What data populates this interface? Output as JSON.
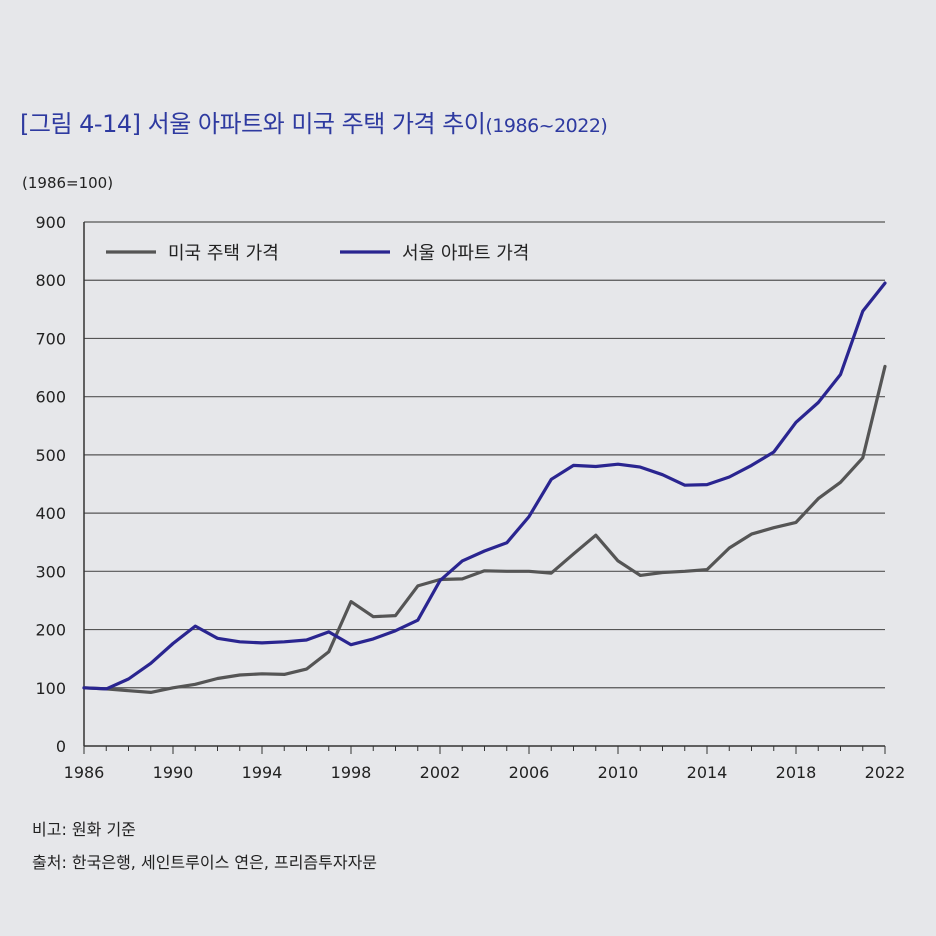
{
  "title": "[그림 4-14] 서울 아파트와 미국 주택 가격 추이",
  "title_years": "(1986~2022)",
  "unit": "(1986=100)",
  "notes": {
    "basis": "비고: 원화 기준",
    "source": "출처: 한국은행, 세인트루이스 연은, 프리즘투자자문"
  },
  "colors": {
    "us_house": "#555555",
    "seoul_apt": "#2a2590",
    "grid": "#555555",
    "title": "#2e3aa0"
  },
  "chart_data": {
    "type": "line",
    "title": "[그림 4-14] 서울 아파트와 미국 주택 가격 추이(1986~2022)",
    "ylabel": "(1986=100)",
    "xlabel": "",
    "xlim": [
      1986,
      2022
    ],
    "ylim": [
      0,
      900
    ],
    "yticks": [
      0,
      100,
      200,
      300,
      400,
      500,
      600,
      700,
      800,
      900
    ],
    "xticks": [
      1986,
      1990,
      1994,
      1998,
      2002,
      2006,
      2010,
      2014,
      2018,
      2022
    ],
    "grid": "horizontal",
    "legend_position": "top-left",
    "x": [
      1986,
      1987,
      1988,
      1989,
      1990,
      1991,
      1992,
      1993,
      1994,
      1995,
      1996,
      1997,
      1998,
      1999,
      2000,
      2001,
      2002,
      2003,
      2004,
      2005,
      2006,
      2007,
      2008,
      2009,
      2010,
      2011,
      2012,
      2013,
      2014,
      2015,
      2016,
      2017,
      2018,
      2019,
      2020,
      2021,
      2022
    ],
    "series": [
      {
        "name": "미국 주택 가격",
        "color": "#555555",
        "values": [
          100,
          98,
          95,
          92,
          100,
          106,
          116,
          122,
          124,
          123,
          132,
          162,
          248,
          222,
          224,
          275,
          286,
          287,
          301,
          300,
          300,
          297,
          330,
          362,
          318,
          293,
          298,
          300,
          303,
          340,
          364,
          375,
          384,
          425,
          453,
          495,
          652
        ]
      },
      {
        "name": "서울 아파트 가격",
        "color": "#2a2590",
        "values": [
          100,
          98,
          115,
          142,
          176,
          206,
          185,
          179,
          177,
          179,
          182,
          196,
          174,
          184,
          198,
          216,
          284,
          318,
          335,
          349,
          394,
          458,
          482,
          480,
          484,
          479,
          466,
          448,
          449,
          462,
          482,
          505,
          556,
          590,
          638,
          747,
          795
        ]
      }
    ]
  }
}
